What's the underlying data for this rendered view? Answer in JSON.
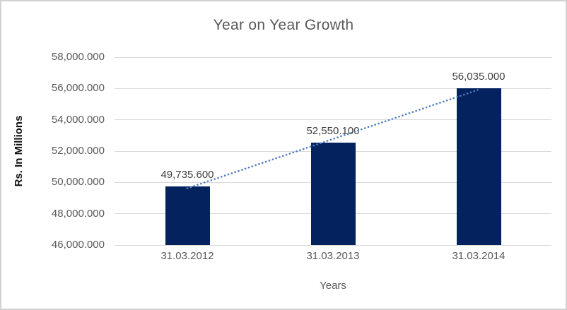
{
  "chart_data": {
    "type": "bar",
    "title": "Year on Year Growth",
    "xlabel": "Years",
    "ylabel": "Rs. In Millions",
    "categories": [
      "31.03.2012",
      "31.03.2013",
      "31.03.2014"
    ],
    "values": [
      49735.6,
      52550.1,
      56035.0
    ],
    "data_labels": [
      "49,735.600",
      "52,550.100",
      "56,035.000"
    ],
    "ylim": [
      46000,
      58000
    ],
    "ytick_step": 2000,
    "ytick_labels": [
      "46,000.000",
      "48,000.000",
      "50,000.000",
      "52,000.000",
      "54,000.000",
      "56,000.000",
      "58,000.000"
    ],
    "grid": true,
    "legend": "none",
    "trendline": {
      "type": "linear",
      "style": "dotted",
      "color": "#4e7ec1"
    },
    "colors": {
      "bar": "#04225e",
      "gridline": "#d9d9d9",
      "axis_line": "#c6c6c6",
      "title_text": "#595959",
      "tick_text": "#595959",
      "data_label_text": "#404040",
      "frame_border": "#d2d2d2",
      "background": "#ffffff"
    }
  }
}
